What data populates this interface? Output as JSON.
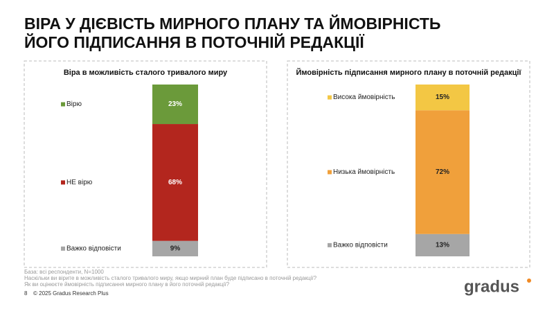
{
  "header": {
    "title": [
      "ВІРА У ДІЄВІСТЬ МИРНОГО ПЛАНУ ТА ЙМОВІРНІСТЬ",
      "ЙОГО ПІДПИСАННЯ В ПОТОЧНІЙ РЕДАКЦІЇ"
    ]
  },
  "chart_data": [
    {
      "type": "bar",
      "stacked": true,
      "title": "Віра в можливість сталого тривалого миру",
      "categories": [
        null
      ],
      "ylim": [
        0,
        100
      ],
      "series": [
        {
          "name": "Вірю",
          "color": "#6b9a3a",
          "values": [
            23
          ],
          "value_labels": [
            "23%"
          ]
        },
        {
          "name": "НЕ вірю",
          "color": "#b3261e",
          "values": [
            68
          ],
          "value_labels": [
            "68%"
          ]
        },
        {
          "name": "Важко відповісти",
          "color": "#a6a6a6",
          "values": [
            9
          ],
          "value_labels": [
            "9%"
          ]
        }
      ]
    },
    {
      "type": "bar",
      "stacked": true,
      "title": "Ймовірність підписання мирного плану в поточній редакції",
      "categories": [
        null
      ],
      "ylim": [
        0,
        100
      ],
      "series": [
        {
          "name": "Висока ймовірність",
          "color": "#f3c744",
          "values": [
            15
          ],
          "value_labels": [
            "15%"
          ]
        },
        {
          "name": "Низька ймовірність",
          "color": "#f0a03b",
          "values": [
            72
          ],
          "value_labels": [
            "72%"
          ]
        },
        {
          "name": "Важко відповісти",
          "color": "#a6a6a6",
          "values": [
            13
          ],
          "value_labels": [
            "13%"
          ]
        }
      ]
    }
  ],
  "footer": {
    "notes": [
      "База: всі респонденти, N=1000",
      "Наскільки ви вірите в можливість сталого тривалого миру, якщо мирний план буде підписано в поточній редакції?",
      "Як ви оцінюєте ймовірність підписання мирного плану в його поточній редакції?"
    ],
    "page": "8",
    "copyright": "© 2025 Gradus Research Plus",
    "logo": "gradus"
  }
}
